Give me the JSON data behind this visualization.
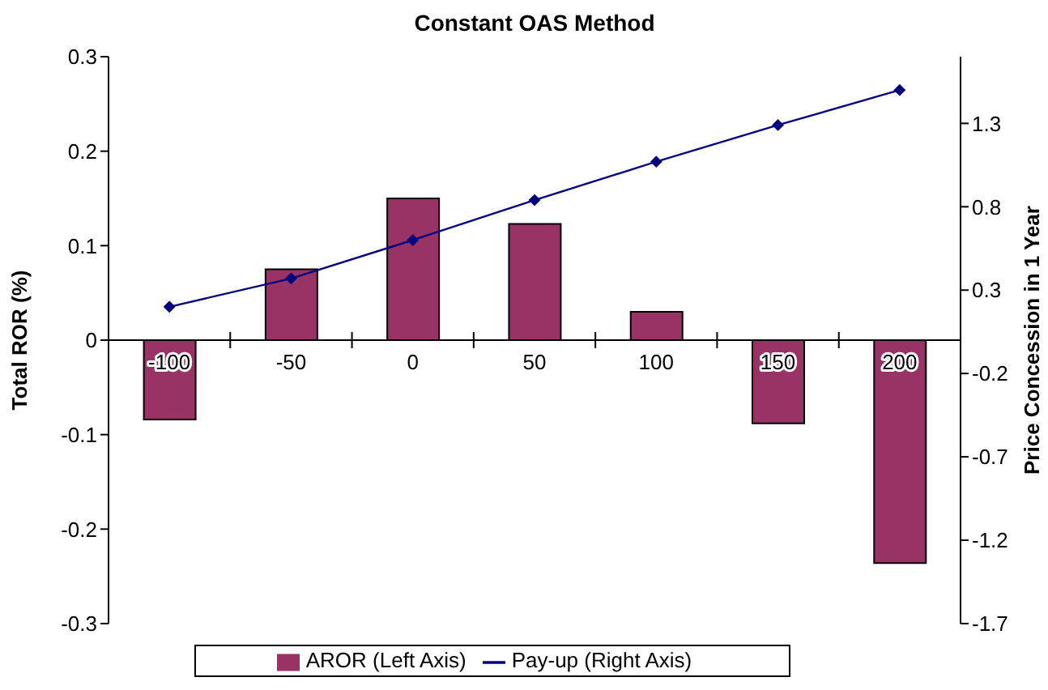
{
  "chart_data": {
    "type": "bar",
    "title": "Constant OAS Method",
    "ylabel": "Total ROR (%)",
    "y2label": "Price Concession in 1 Year",
    "categories": [
      "-100",
      "-50",
      "0",
      "50",
      "100",
      "150",
      "200"
    ],
    "series": [
      {
        "name": "AROR (Left Axis)",
        "color": "#993366",
        "values": [
          -0.084,
          0.075,
          0.15,
          0.123,
          0.03,
          -0.088,
          -0.236
        ]
      },
      {
        "name": "Pay-up (Right Axis)",
        "type": "line",
        "axis": "y2",
        "color": "#000080",
        "marker": "diamond",
        "values": [
          0.2,
          0.37,
          0.6,
          0.84,
          1.07,
          1.29,
          1.5
        ]
      }
    ],
    "ylim": [
      -0.3,
      0.3
    ],
    "yticks": [
      -0.3,
      -0.2,
      -0.1,
      0,
      0.1,
      0.2,
      0.3
    ],
    "y2lim": [
      -1.7,
      1.7
    ],
    "y2ticks": [
      -1.7,
      -1.2,
      -0.7,
      -0.2,
      0.3,
      0.8,
      1.3
    ],
    "grid": false,
    "legend": "bottom"
  }
}
